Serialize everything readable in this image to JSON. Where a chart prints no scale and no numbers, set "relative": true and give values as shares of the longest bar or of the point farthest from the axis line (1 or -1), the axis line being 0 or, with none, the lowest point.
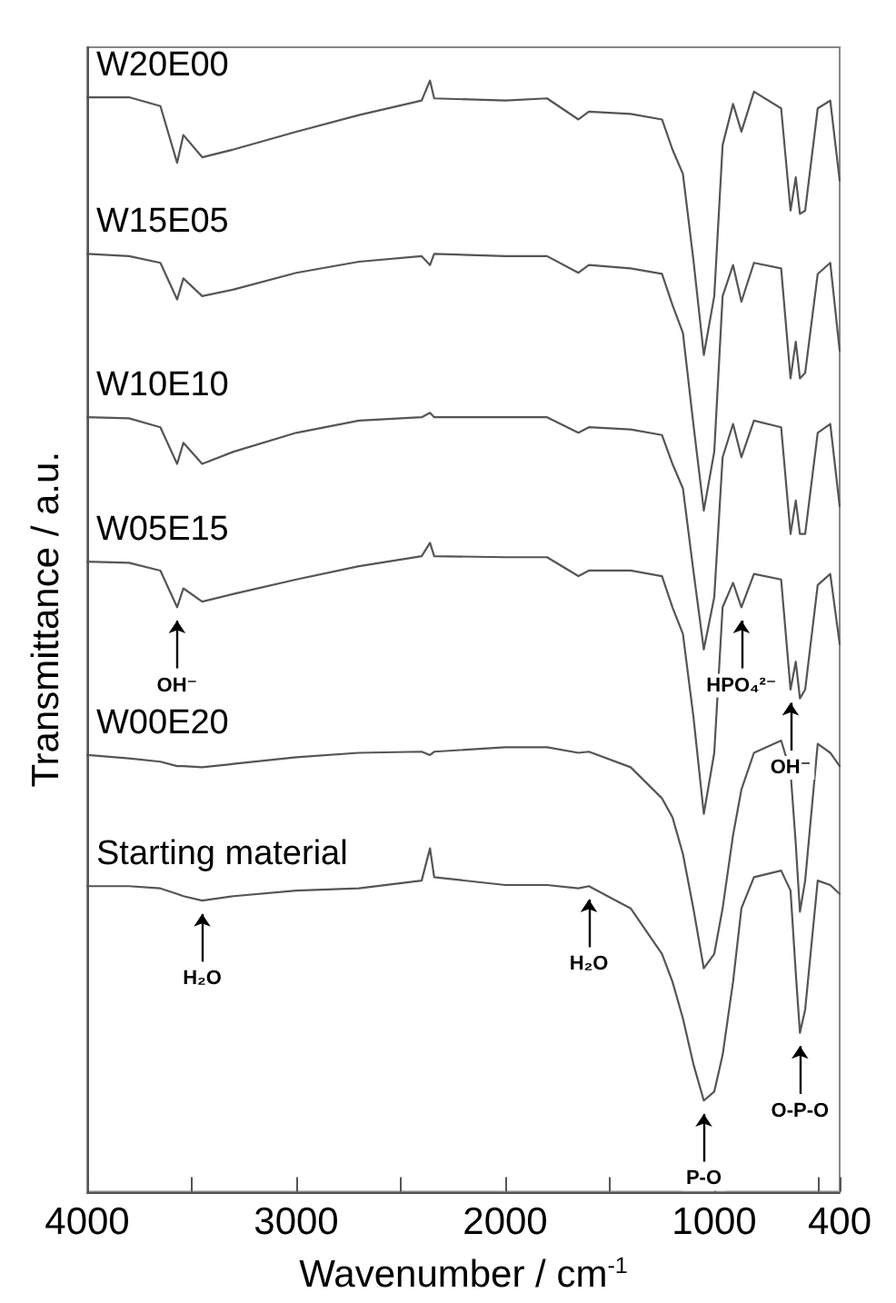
{
  "chart_data": {
    "type": "line",
    "relative": true,
    "xlabel": "Wavenumber / cm$^{-1}$",
    "ylabel": "Transmittance / a.u.",
    "xlim": [
      4000,
      400
    ],
    "xticks": [
      4000,
      {
        "value": 3500,
        "label": null
      },
      3000,
      {
        "value": 2500,
        "label": null
      },
      2000,
      {
        "value": 1500,
        "label": null
      },
      1000,
      {
        "value": 500,
        "label": null
      },
      400
    ],
    "x": [
      4000,
      3800,
      3650,
      3570,
      3540,
      3450,
      3300,
      3000,
      2700,
      2400,
      2360,
      2340,
      2000,
      1800,
      1650,
      1600,
      1400,
      1250,
      1200,
      1150,
      1100,
      1050,
      1000,
      960,
      910,
      870,
      810,
      680,
      635,
      610,
      590,
      565,
      505,
      445,
      400
    ],
    "series": [
      {
        "name": "W20E00",
        "color": "#555555",
        "values": [
          0.985,
          0.985,
          0.977,
          0.926,
          0.951,
          0.931,
          0.938,
          0.954,
          0.969,
          0.982,
          1,
          0.984,
          0.982,
          0.984,
          0.965,
          0.972,
          0.97,
          0.965,
          0.938,
          0.916,
          0.839,
          0.753,
          0.806,
          0.942,
          0.979,
          0.954,
          0.99,
          0.975,
          0.883,
          0.913,
          0.88,
          0.883,
          0.975,
          0.982,
          0.91
        ]
      },
      {
        "name": "W15E05",
        "color": "#555555",
        "values": [
          0.844,
          0.842,
          0.836,
          0.803,
          0.822,
          0.806,
          0.812,
          0.827,
          0.837,
          0.842,
          0.834,
          0.844,
          0.842,
          0.842,
          0.827,
          0.834,
          0.831,
          0.826,
          0.798,
          0.773,
          0.691,
          0.613,
          0.666,
          0.806,
          0.834,
          0.801,
          0.836,
          0.831,
          0.732,
          0.765,
          0.732,
          0.737,
          0.826,
          0.836,
          0.757
        ]
      },
      {
        "name": "W10E10",
        "color": "#555555",
        "values": [
          0.697,
          0.696,
          0.688,
          0.655,
          0.674,
          0.655,
          0.666,
          0.683,
          0.694,
          0.697,
          0.701,
          0.697,
          0.697,
          0.697,
          0.683,
          0.688,
          0.686,
          0.681,
          0.655,
          0.633,
          0.559,
          0.488,
          0.535,
          0.661,
          0.691,
          0.661,
          0.694,
          0.688,
          0.592,
          0.622,
          0.592,
          0.592,
          0.683,
          0.691,
          0.617
        ]
      },
      {
        "name": "W05E15",
        "color": "#555555",
        "values": [
          0.567,
          0.566,
          0.559,
          0.526,
          0.543,
          0.531,
          0.538,
          0.551,
          0.563,
          0.572,
          0.584,
          0.572,
          0.571,
          0.571,
          0.554,
          0.559,
          0.559,
          0.554,
          0.526,
          0.502,
          0.428,
          0.34,
          0.395,
          0.526,
          0.548,
          0.526,
          0.556,
          0.551,
          0.452,
          0.477,
          0.444,
          0.452,
          0.546,
          0.556,
          0.493
        ]
      },
      {
        "name": "W00E20",
        "color": "#555555",
        "values": [
          0.393,
          0.39,
          0.387,
          0.383,
          0.383,
          0.382,
          0.385,
          0.391,
          0.395,
          0.396,
          0.393,
          0.396,
          0.4,
          0.4,
          0.395,
          0.396,
          0.382,
          0.354,
          0.337,
          0.304,
          0.255,
          0.201,
          0.214,
          0.255,
          0.321,
          0.362,
          0.395,
          0.406,
          0.378,
          0.313,
          0.252,
          0.28,
          0.403,
          0.395,
          0.383
        ]
      },
      {
        "name": "Starting material",
        "color": "#555555",
        "values": [
          0.275,
          0.275,
          0.273,
          0.268,
          0.266,
          0.262,
          0.266,
          0.271,
          0.273,
          0.28,
          0.309,
          0.283,
          0.276,
          0.276,
          0.273,
          0.275,
          0.255,
          0.214,
          0.189,
          0.156,
          0.115,
          0.082,
          0.09,
          0.123,
          0.189,
          0.255,
          0.283,
          0.289,
          0.271,
          0.197,
          0.143,
          0.164,
          0.28,
          0.276,
          0.268
        ]
      }
    ],
    "annotations": [
      {
        "text": "OH⁻",
        "x": 3570,
        "y": 0.526
      },
      {
        "text": "HPO₄²⁻",
        "x": 870,
        "y": 0.526
      },
      {
        "text": "OH⁻",
        "x": 635,
        "y": 0.452
      },
      {
        "text": "H₂O",
        "x": 3450,
        "y": 0.262
      },
      {
        "text": "H₂O",
        "x": 1600,
        "y": 0.275
      },
      {
        "text": "P-O",
        "x": 1050,
        "y": 0.082
      },
      {
        "text": "O-P-O",
        "x": 590,
        "y": 0.143
      }
    ],
    "grid": false,
    "legend": false,
    "marker": "none",
    "line_style": "solid"
  }
}
